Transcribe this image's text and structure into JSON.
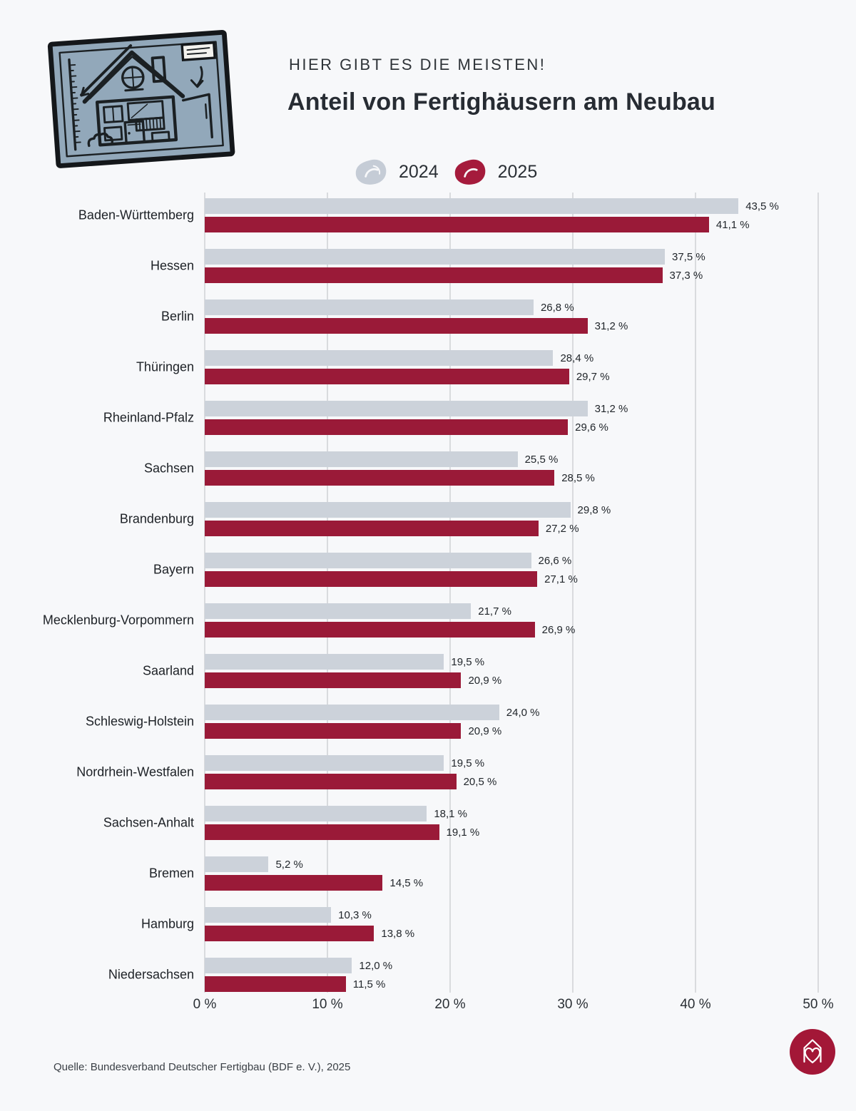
{
  "header": {
    "kicker": "HIER GIBT ES DIE MEISTEN!",
    "title": "Anteil von Fertighäusern am Neubau"
  },
  "legend": {
    "items": [
      {
        "label": "2024",
        "color": "#c5ccd6"
      },
      {
        "label": "2025",
        "color": "#a51b3c"
      }
    ]
  },
  "chart_data": {
    "type": "bar",
    "orientation": "horizontal",
    "title": "Anteil von Fertighäusern am Neubau",
    "categories": [
      "Baden-Württemberg",
      "Hessen",
      "Berlin",
      "Thüringen",
      "Rheinland-Pfalz",
      "Sachsen",
      "Brandenburg",
      "Bayern",
      "Mecklenburg-Vorpommern",
      "Saarland",
      "Schleswig-Holstein",
      "Nordrhein-Westfalen",
      "Sachsen-Anhalt",
      "Bremen",
      "Hamburg",
      "Niedersachsen"
    ],
    "series": [
      {
        "name": "2024",
        "color": "#ccd2da",
        "values": [
          43.5,
          37.5,
          26.8,
          28.4,
          31.2,
          25.5,
          29.8,
          26.6,
          21.7,
          19.5,
          24.0,
          19.5,
          18.1,
          5.2,
          10.3,
          12.0
        ],
        "labels": [
          "43,5 %",
          "37,5 %",
          "26,8 %",
          "28,4 %",
          "31,2 %",
          "25,5 %",
          "29,8 %",
          "26,6 %",
          "21,7 %",
          "19,5 %",
          "24,0 %",
          "19,5 %",
          "18,1 %",
          "5,2 %",
          "10,3 %",
          "12,0 %"
        ]
      },
      {
        "name": "2025",
        "color": "#9a1a38",
        "values": [
          41.1,
          37.3,
          31.2,
          29.7,
          29.6,
          28.5,
          27.2,
          27.1,
          26.9,
          20.9,
          20.9,
          20.5,
          19.1,
          14.5,
          13.8,
          11.5
        ],
        "labels": [
          "41,1 %",
          "37,3 %",
          "31,2 %",
          "29,7 %",
          "29,6 %",
          "28,5 %",
          "27,2 %",
          "27,1 %",
          "26,9 %",
          "20,9 %",
          "20,9 %",
          "20,5 %",
          "19,1 %",
          "14,5 %",
          "13,8 %",
          "11,5 %"
        ]
      }
    ],
    "xlim": [
      0,
      50
    ],
    "x_ticks": [
      "0 %",
      "10 %",
      "20 %",
      "30 %",
      "40 %",
      "50 %"
    ],
    "grid": true,
    "legend_position": "top"
  },
  "footer": {
    "source": "Quelle: Bundesverband Deutscher Fertigbau (BDF e. V.), 2025"
  },
  "colors": {
    "background": "#f7f8fa",
    "bar_2024": "#ccd2da",
    "bar_2025": "#9a1a38",
    "gridline": "#d9dbde",
    "logo": "#a31737",
    "text": "#22272d"
  }
}
